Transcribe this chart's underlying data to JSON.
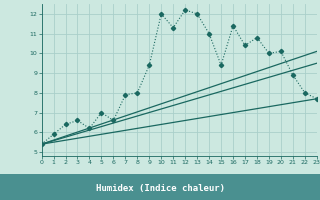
{
  "title": "",
  "xlabel": "Humidex (Indice chaleur)",
  "xlim": [
    0,
    23
  ],
  "ylim": [
    4.8,
    12.5
  ],
  "background_color": "#cce8e0",
  "axis_bg_color": "#cce8e0",
  "label_bar_color": "#4a9090",
  "grid_color": "#aacfca",
  "line_color": "#1a6860",
  "tick_color": "#1a6860",
  "xlabel_color": "#ffffff",
  "xticks": [
    0,
    1,
    2,
    3,
    4,
    5,
    6,
    7,
    8,
    9,
    10,
    11,
    12,
    13,
    14,
    15,
    16,
    17,
    18,
    19,
    20,
    21,
    22,
    23
  ],
  "yticks": [
    5,
    6,
    7,
    8,
    9,
    10,
    11,
    12
  ],
  "series1_x": [
    0,
    1,
    2,
    3,
    4,
    5,
    6,
    7,
    8,
    9,
    10,
    11,
    12,
    13,
    14,
    15,
    16,
    17,
    18,
    19,
    20,
    21,
    22,
    23
  ],
  "series1_y": [
    5.4,
    5.9,
    6.4,
    6.6,
    6.2,
    7.0,
    6.6,
    7.9,
    8.0,
    9.4,
    12.0,
    11.3,
    12.2,
    12.0,
    11.0,
    9.4,
    11.4,
    10.4,
    10.8,
    10.0,
    10.1,
    8.9,
    8.0,
    7.7
  ],
  "series2_x": [
    0,
    23
  ],
  "series2_y": [
    5.4,
    10.1
  ],
  "series3_x": [
    0,
    23
  ],
  "series3_y": [
    5.4,
    9.5
  ],
  "series4_x": [
    0,
    23
  ],
  "series4_y": [
    5.4,
    7.7
  ]
}
